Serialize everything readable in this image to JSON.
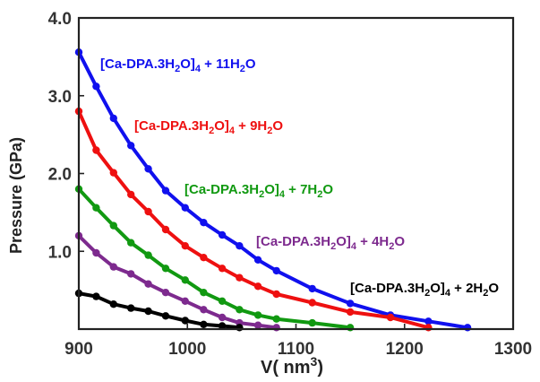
{
  "chart_data": {
    "type": "line",
    "xlabel_main": "V( nm",
    "xlabel_sup": "3",
    "xlabel_close": ")",
    "ylabel": "Pressure (GPa)",
    "xlim": [
      900,
      1300
    ],
    "ylim": [
      0,
      4.0
    ],
    "xticks": [
      900,
      1000,
      1100,
      1200,
      1300
    ],
    "xtick_labels": [
      "900",
      "1000",
      "1100",
      "1200",
      "1300"
    ],
    "yticks": [
      1.0,
      2.0,
      3.0,
      4.0
    ],
    "ytick_labels": [
      "1.0",
      "2.0",
      "3.0",
      "4.0"
    ],
    "grid": false,
    "series": [
      {
        "name": "[Ca-DPA.3H2O]4 + 11H2O",
        "label_parts": {
          "a": "[Ca-DPA.3H",
          "b": "2",
          "c": "O]",
          "d": "4",
          "e": " + 11H",
          "f": "2",
          "g": "O"
        },
        "color": "#1010ee",
        "x": [
          900,
          916,
          932,
          948,
          964,
          980,
          998,
          1015,
          1032,
          1048,
          1065,
          1082,
          1115,
          1150,
          1187,
          1222,
          1258
        ],
        "y": [
          3.56,
          3.12,
          2.71,
          2.36,
          2.06,
          1.78,
          1.56,
          1.37,
          1.21,
          1.07,
          0.89,
          0.75,
          0.52,
          0.33,
          0.18,
          0.1,
          0.02
        ]
      },
      {
        "name": "[Ca-DPA.3H2O]4 + 9H2O",
        "label_parts": {
          "a": "[Ca-DPA.3H",
          "b": "2",
          "c": "O]",
          "d": "4",
          "e": " + 9H",
          "f": "2",
          "g": "O"
        },
        "color": "#ee1010",
        "x": [
          900,
          916,
          932,
          948,
          964,
          980,
          998,
          1015,
          1032,
          1048,
          1065,
          1082,
          1115,
          1150,
          1187,
          1222
        ],
        "y": [
          2.8,
          2.3,
          2.01,
          1.73,
          1.51,
          1.28,
          1.07,
          0.92,
          0.78,
          0.66,
          0.55,
          0.45,
          0.34,
          0.22,
          0.15,
          0.02
        ]
      },
      {
        "name": "[Ca-DPA.3H2O]4 + 7H2O",
        "label_parts": {
          "a": "[Ca-DPA.3H",
          "b": "2",
          "c": "O]",
          "d": "4",
          "e": " + 7H",
          "f": "2",
          "g": "O"
        },
        "color": "#119911",
        "x": [
          900,
          916,
          932,
          948,
          964,
          980,
          998,
          1015,
          1032,
          1048,
          1065,
          1082,
          1115,
          1150
        ],
        "y": [
          1.8,
          1.56,
          1.33,
          1.11,
          0.95,
          0.78,
          0.63,
          0.47,
          0.36,
          0.25,
          0.18,
          0.13,
          0.08,
          0.02
        ]
      },
      {
        "name": "[Ca-DPA.3H2O]4 + 4H2O",
        "label_parts": {
          "a": "[Ca-DPA.3H",
          "b": "2",
          "c": "O]",
          "d": "4",
          "e": " + 4H",
          "f": "2",
          "g": "O"
        },
        "color": "#7d2a8e",
        "x": [
          900,
          916,
          932,
          948,
          964,
          980,
          998,
          1015,
          1032,
          1048,
          1065,
          1082
        ],
        "y": [
          1.2,
          0.98,
          0.8,
          0.71,
          0.58,
          0.47,
          0.36,
          0.25,
          0.15,
          0.08,
          0.05,
          0.02
        ]
      },
      {
        "name": "[Ca-DPA.3H2O]4 + 2H2O",
        "label_parts": {
          "a": "[Ca-DPA.3H",
          "b": "2",
          "c": "O]",
          "d": "4",
          "e": " + 2H",
          "f": "2",
          "g": "O"
        },
        "color": "#000000",
        "x": [
          900,
          916,
          932,
          948,
          964,
          980,
          998,
          1015,
          1032,
          1048
        ],
        "y": [
          0.46,
          0.42,
          0.32,
          0.27,
          0.23,
          0.17,
          0.11,
          0.06,
          0.04,
          0.02
        ]
      }
    ]
  }
}
